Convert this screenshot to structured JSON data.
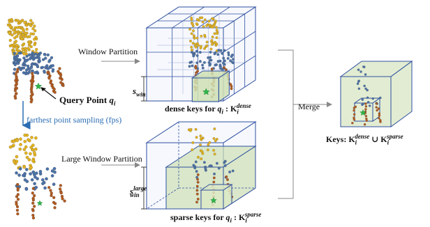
{
  "labels": {
    "window_partition": "Window Partition",
    "large_window_partition": "Large Window Partition",
    "query_point": "Query Point",
    "query_symbol": "q",
    "query_sub": "i",
    "fps": "farthest point sampling (fps)",
    "dense_keys": "dense keys for",
    "dense_sup": "dense",
    "sparse_keys": "sparse keys for",
    "sparse_sup": "sparse",
    "merge": "Merge",
    "keys": "Keys:",
    "K": "K",
    "union": "∪",
    "s_win_s": "s",
    "s_win_sub": "win",
    "s_large_sup": "large",
    "colon": ":"
  },
  "colors": {
    "cube_edge": "#2e4fa0",
    "cube_fill": "#eef2fb",
    "green_fill": "#cfe0b4",
    "green_edge": "#2e4fa0",
    "yellow": "#e3b21f",
    "blue_pts": "#4b72a8",
    "brown": "#b25a1e",
    "star": "#2fb54a",
    "fps_arrow": "#2b6db3",
    "fps_text": "#2b6db3",
    "grey_line": "#888888"
  },
  "icons": [
    "query-star-icon",
    "window-partition-arrow-icon",
    "fps-arrow-icon",
    "merge-bracket-icon",
    "merge-arrow-icon"
  ]
}
